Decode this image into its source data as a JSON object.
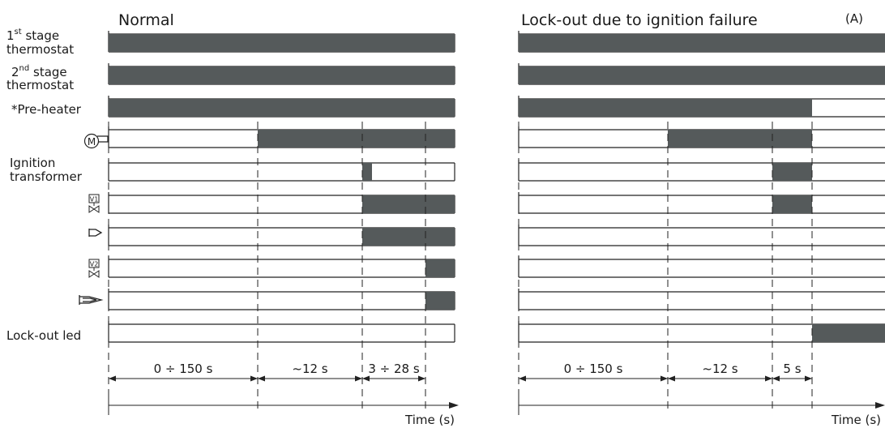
{
  "panels": [
    {
      "title": "Normal",
      "durations": [
        "0 ÷ 150 s",
        "~12 s",
        "3 ÷ 28 s"
      ],
      "axis_label": "Time (s)"
    },
    {
      "title": "Lock-out due to ignition failure",
      "durations": [
        "0 ÷ 150 s",
        "~12 s",
        "5 s"
      ],
      "axis_label": "Time (s)",
      "corner_label": "(A)"
    }
  ],
  "rows": {
    "stage1_num": "1",
    "stage1_sup": "st",
    "stage1_rest": " stage",
    "stage1_line2": "thermostat",
    "stage2_num": "2",
    "stage2_sup": "nd",
    "stage2_rest": " stage",
    "stage2_line2": "thermostat",
    "preheater": "*Pre-heater",
    "ignition_line1": "Ignition",
    "ignition_line2": "transformer",
    "lockout_led": "Lock-out led"
  },
  "icons": {
    "motor": "motor-icon",
    "valve1": "valve-v1-icon",
    "pilot_flame": "pilot-flame-icon",
    "valve2": "valve-v2-icon",
    "main_flame": "main-flame-icon",
    "motor_letter": "M",
    "valve1_text": "V1",
    "valve2_text": "V2"
  },
  "timing": {
    "time_marks": [
      "t0",
      "t1",
      "t2",
      "t3"
    ],
    "normal": {
      "stage1_thermostat": [
        [
          "t0",
          "end"
        ]
      ],
      "stage2_thermostat": [
        [
          "t0",
          "end"
        ]
      ],
      "preheater": [
        [
          "t0",
          "end"
        ]
      ],
      "motor": [
        [
          "t1",
          "end"
        ]
      ],
      "ignition_transformer": [
        [
          "t2",
          "t2+"
        ]
      ],
      "valve1": [
        [
          "t2",
          "end"
        ]
      ],
      "pilot_flame": [
        [
          "t2",
          "end"
        ]
      ],
      "valve2": [
        [
          "t3",
          "end"
        ]
      ],
      "main_flame": [
        [
          "t3",
          "end"
        ]
      ],
      "lockout_led": []
    },
    "lockout": {
      "stage1_thermostat": [
        [
          "t0",
          "end"
        ]
      ],
      "stage2_thermostat": [
        [
          "t0",
          "end"
        ]
      ],
      "preheater": [
        [
          "t0",
          "t3"
        ]
      ],
      "motor": [
        [
          "t1",
          "t3"
        ]
      ],
      "ignition_transformer": [
        [
          "t2",
          "t3"
        ]
      ],
      "valve1": [
        [
          "t2",
          "t3"
        ]
      ],
      "pilot_flame": [],
      "valve2": [],
      "main_flame": [],
      "lockout_led": [
        [
          "t3",
          "end"
        ]
      ]
    }
  }
}
